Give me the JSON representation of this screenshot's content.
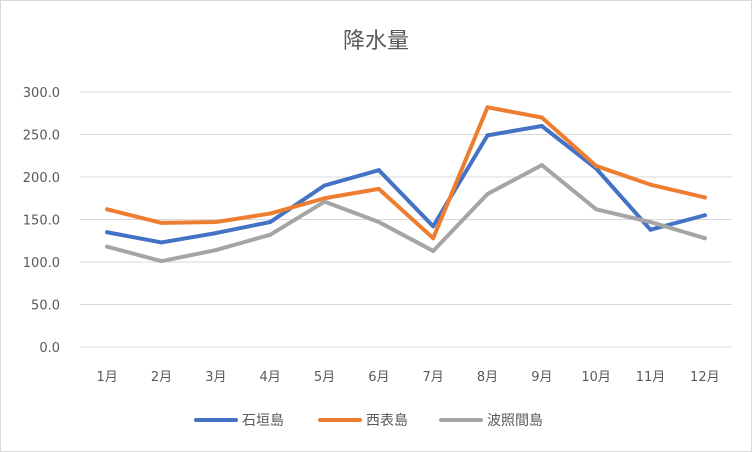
{
  "chart_data": {
    "type": "line",
    "title": "降水量",
    "categories": [
      "1月",
      "2月",
      "3月",
      "4月",
      "5月",
      "6月",
      "7月",
      "8月",
      "9月",
      "10月",
      "11月",
      "12月"
    ],
    "y_ticks": [
      "0.0",
      "50.0",
      "100.0",
      "150.0",
      "200.0",
      "250.0",
      "300.0"
    ],
    "ylim": [
      0,
      300
    ],
    "grid": true,
    "legend_position": "bottom",
    "series": [
      {
        "name": "石垣島",
        "color": "#4472c4",
        "values": [
          135,
          123,
          134,
          147,
          190,
          208,
          142,
          249,
          260,
          210,
          138,
          155
        ]
      },
      {
        "name": "西表島",
        "color": "#ed7d31",
        "values": [
          162,
          146,
          147,
          157,
          175,
          186,
          128,
          282,
          270,
          213,
          191,
          176
        ]
      },
      {
        "name": "波照間島",
        "color": "#a5a5a5",
        "values": [
          118,
          101,
          114,
          132,
          171,
          147,
          113,
          180,
          214,
          162,
          147,
          128
        ]
      }
    ]
  }
}
